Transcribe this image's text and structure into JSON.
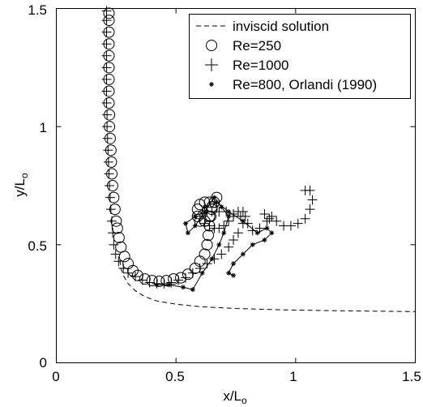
{
  "chart_data": {
    "type": "scatter",
    "title": "",
    "xlabel_main": "x/L",
    "xlabel_sub": "o",
    "ylabel_main": "y/L",
    "ylabel_sub": "o",
    "xlim": [
      0,
      1.5
    ],
    "ylim": [
      0,
      1.5
    ],
    "xticks": [
      "0",
      "0.5",
      "1",
      "1.5"
    ],
    "yticks": [
      "0",
      "0.5",
      "1",
      "1.5"
    ],
    "grid": false,
    "legend_position": "top-right",
    "legend": [
      "inviscid solution",
      "Re=250",
      "Re=1000",
      "Re=800, Orlandi (1990)"
    ],
    "series": [
      {
        "name": "inviscid solution",
        "style": "dashed-line",
        "color": "#000000",
        "points": [
          [
            0.265,
            0.435
          ],
          [
            0.27,
            0.4
          ],
          [
            0.28,
            0.37
          ],
          [
            0.3,
            0.335
          ],
          [
            0.33,
            0.305
          ],
          [
            0.37,
            0.28
          ],
          [
            0.42,
            0.262
          ],
          [
            0.5,
            0.248
          ],
          [
            0.6,
            0.238
          ],
          [
            0.75,
            0.23
          ],
          [
            0.95,
            0.224
          ],
          [
            1.2,
            0.22
          ],
          [
            1.5,
            0.217
          ]
        ]
      },
      {
        "name": "Re=250",
        "style": "circle",
        "color": "#000000",
        "points": [
          [
            0.22,
            1.48
          ],
          [
            0.22,
            1.45
          ],
          [
            0.22,
            1.4
          ],
          [
            0.22,
            1.35
          ],
          [
            0.22,
            1.3
          ],
          [
            0.22,
            1.25
          ],
          [
            0.22,
            1.2
          ],
          [
            0.22,
            1.15
          ],
          [
            0.22,
            1.1
          ],
          [
            0.222,
            1.05
          ],
          [
            0.222,
            1.0
          ],
          [
            0.225,
            0.95
          ],
          [
            0.228,
            0.9
          ],
          [
            0.23,
            0.85
          ],
          [
            0.232,
            0.8
          ],
          [
            0.235,
            0.75
          ],
          [
            0.24,
            0.7
          ],
          [
            0.245,
            0.65
          ],
          [
            0.25,
            0.6
          ],
          [
            0.255,
            0.57
          ],
          [
            0.262,
            0.53
          ],
          [
            0.27,
            0.49
          ],
          [
            0.285,
            0.45
          ],
          [
            0.3,
            0.42
          ],
          [
            0.32,
            0.39
          ],
          [
            0.34,
            0.37
          ],
          [
            0.37,
            0.355
          ],
          [
            0.4,
            0.348
          ],
          [
            0.43,
            0.345
          ],
          [
            0.46,
            0.348
          ],
          [
            0.49,
            0.355
          ],
          [
            0.52,
            0.36
          ],
          [
            0.55,
            0.375
          ],
          [
            0.58,
            0.4
          ],
          [
            0.6,
            0.43
          ],
          [
            0.62,
            0.46
          ],
          [
            0.63,
            0.5
          ],
          [
            0.635,
            0.54
          ],
          [
            0.64,
            0.58
          ],
          [
            0.645,
            0.62
          ],
          [
            0.65,
            0.66
          ],
          [
            0.64,
            0.68
          ],
          [
            0.62,
            0.68
          ],
          [
            0.6,
            0.67
          ],
          [
            0.59,
            0.65
          ],
          [
            0.59,
            0.62
          ],
          [
            0.6,
            0.6
          ],
          [
            0.62,
            0.6
          ],
          [
            0.64,
            0.62
          ],
          [
            0.65,
            0.65
          ],
          [
            0.66,
            0.68
          ],
          [
            0.67,
            0.7
          ],
          [
            0.66,
            0.68
          ],
          [
            0.65,
            0.66
          ]
        ]
      },
      {
        "name": "Re=1000",
        "style": "plus",
        "color": "#000000",
        "points": [
          [
            0.21,
            1.49
          ],
          [
            0.21,
            1.45
          ],
          [
            0.21,
            1.4
          ],
          [
            0.21,
            1.35
          ],
          [
            0.21,
            1.3
          ],
          [
            0.21,
            1.25
          ],
          [
            0.21,
            1.2
          ],
          [
            0.21,
            1.15
          ],
          [
            0.21,
            1.1
          ],
          [
            0.212,
            1.05
          ],
          [
            0.212,
            1.0
          ],
          [
            0.214,
            0.95
          ],
          [
            0.216,
            0.9
          ],
          [
            0.218,
            0.85
          ],
          [
            0.22,
            0.8
          ],
          [
            0.222,
            0.75
          ],
          [
            0.225,
            0.7
          ],
          [
            0.228,
            0.65
          ],
          [
            0.232,
            0.6
          ],
          [
            0.236,
            0.55
          ],
          [
            0.24,
            0.5
          ],
          [
            0.248,
            0.46
          ],
          [
            0.26,
            0.43
          ],
          [
            0.28,
            0.4
          ],
          [
            0.3,
            0.38
          ],
          [
            0.33,
            0.365
          ],
          [
            0.36,
            0.35
          ],
          [
            0.39,
            0.34
          ],
          [
            0.42,
            0.335
          ],
          [
            0.45,
            0.335
          ],
          [
            0.48,
            0.34
          ],
          [
            0.51,
            0.35
          ],
          [
            0.54,
            0.36
          ],
          [
            0.57,
            0.38
          ],
          [
            0.6,
            0.4
          ],
          [
            0.63,
            0.42
          ],
          [
            0.66,
            0.44
          ],
          [
            0.69,
            0.46
          ],
          [
            0.72,
            0.49
          ],
          [
            0.74,
            0.52
          ],
          [
            0.76,
            0.55
          ],
          [
            0.78,
            0.59
          ],
          [
            0.79,
            0.62
          ],
          [
            0.78,
            0.64
          ],
          [
            0.76,
            0.64
          ],
          [
            0.74,
            0.62
          ],
          [
            0.72,
            0.6
          ],
          [
            0.7,
            0.58
          ],
          [
            0.68,
            0.57
          ],
          [
            0.66,
            0.57
          ],
          [
            0.64,
            0.58
          ],
          [
            0.62,
            0.59
          ],
          [
            0.6,
            0.61
          ],
          [
            0.61,
            0.63
          ],
          [
            0.63,
            0.64
          ],
          [
            0.65,
            0.64
          ],
          [
            0.68,
            0.64
          ],
          [
            0.71,
            0.64
          ],
          [
            0.74,
            0.63
          ],
          [
            0.77,
            0.62
          ],
          [
            0.8,
            0.59
          ],
          [
            0.82,
            0.56
          ],
          [
            0.85,
            0.57
          ],
          [
            0.88,
            0.6
          ],
          [
            0.9,
            0.62
          ],
          [
            0.92,
            0.6
          ],
          [
            0.95,
            0.58
          ],
          [
            0.98,
            0.58
          ],
          [
            1.01,
            0.59
          ],
          [
            1.04,
            0.61
          ],
          [
            1.06,
            0.65
          ],
          [
            1.07,
            0.69
          ],
          [
            1.06,
            0.73
          ],
          [
            1.04,
            0.73
          ],
          [
            0.87,
            0.63
          ],
          [
            0.89,
            0.61
          ]
        ]
      },
      {
        "name": "Re=800, Orlandi (1990)",
        "style": "asterisk-line",
        "color": "#000000",
        "points": [
          [
            0.42,
            0.33
          ],
          [
            0.47,
            0.33
          ],
          [
            0.53,
            0.32
          ],
          [
            0.57,
            0.31
          ],
          [
            0.61,
            0.38
          ],
          [
            0.65,
            0.44
          ],
          [
            0.68,
            0.5
          ],
          [
            0.7,
            0.55
          ],
          [
            0.72,
            0.62
          ],
          [
            0.69,
            0.66
          ],
          [
            0.66,
            0.7
          ],
          [
            0.62,
            0.64
          ],
          [
            0.58,
            0.58
          ],
          [
            0.55,
            0.55
          ],
          [
            0.54,
            0.59
          ],
          [
            0.58,
            0.62
          ],
          [
            0.62,
            0.66
          ],
          [
            0.67,
            0.68
          ],
          [
            0.72,
            0.64
          ],
          [
            0.78,
            0.6
          ],
          [
            0.84,
            0.55
          ],
          [
            0.88,
            0.57
          ],
          [
            0.9,
            0.55
          ],
          [
            0.87,
            0.52
          ],
          [
            0.82,
            0.5
          ],
          [
            0.78,
            0.46
          ],
          [
            0.74,
            0.42
          ],
          [
            0.72,
            0.38
          ],
          [
            0.74,
            0.37
          ]
        ]
      }
    ]
  }
}
